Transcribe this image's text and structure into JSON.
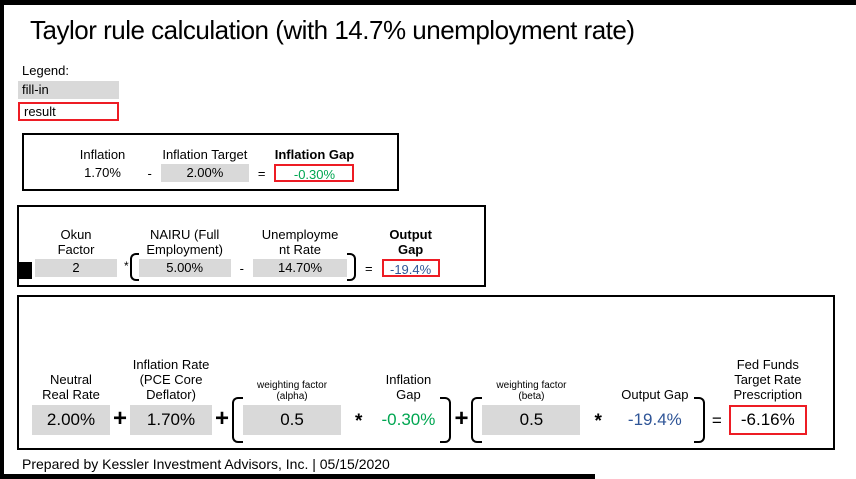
{
  "page": {
    "title": "Taylor rule calculation (with 14.7% unemployment rate)",
    "footer": "Prepared by Kessler Investment Advisors, Inc. | 05/15/2020"
  },
  "legend": {
    "heading": "Legend:",
    "fill_in_label": "fill-in",
    "result_label": "result"
  },
  "colors": {
    "fill_gray": "#d9d9d9",
    "result_border_red": "#ed1c24",
    "inflation_gap_green": "#00a651",
    "output_gap_blue": "#2f5597"
  },
  "inflation_box": {
    "terms": [
      {
        "label": "Inflation",
        "value": "1.70%"
      },
      {
        "label": "Inflation Target",
        "value": "2.00%"
      },
      {
        "label": "Inflation Gap",
        "value": "-0.30%"
      }
    ],
    "ops": {
      "minus": "-",
      "equals": "="
    }
  },
  "output_box": {
    "terms": [
      {
        "label": "Okun\nFactor",
        "value": "2"
      },
      {
        "label": "NAIRU (Full\nEmployment)",
        "value": "5.00%"
      },
      {
        "label": "Unemployme\nnt Rate",
        "value": "14.70%"
      },
      {
        "label": "Output\nGap",
        "value": "-19.4%"
      }
    ],
    "ops": {
      "times": "*",
      "minus": "-",
      "equals": "="
    }
  },
  "taylor_box": {
    "terms": [
      {
        "label": "Neutral\nReal Rate",
        "value": "2.00%"
      },
      {
        "label": "Inflation Rate\n(PCE Core\nDeflator)",
        "value": "1.70%"
      },
      {
        "label": "weighting factor\n(alpha)",
        "value": "0.5"
      },
      {
        "label": "Inflation\nGap",
        "value": "-0.30%"
      },
      {
        "label": "weighting factor\n(beta)",
        "value": "0.5"
      },
      {
        "label": "Output Gap",
        "value": "-19.4%"
      },
      {
        "label": "Fed Funds\nTarget Rate\nPrescription",
        "value": "-6.16%"
      }
    ],
    "ops": {
      "plus1": "+",
      "plus2": "+",
      "times1": "*",
      "plus3": "+",
      "times2": "*",
      "equals": "="
    }
  }
}
